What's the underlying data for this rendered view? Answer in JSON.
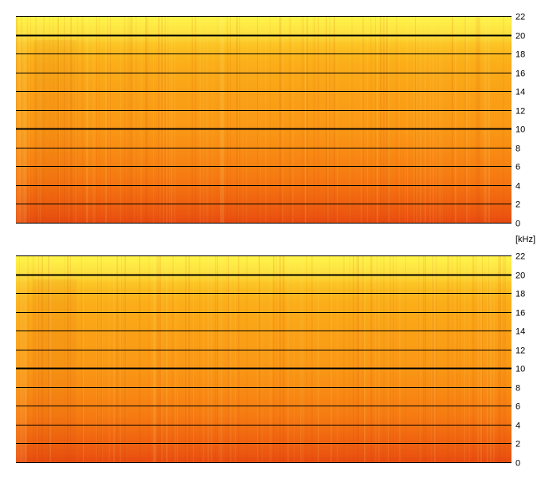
{
  "chart_data": [
    {
      "type": "heatmap",
      "title": "",
      "ylabel": "[kHz]",
      "ylim": [
        0,
        22
      ],
      "yticks": [
        0,
        2,
        4,
        6,
        8,
        10,
        12,
        14,
        16,
        18,
        20,
        22
      ],
      "ytick_labels": [
        "0",
        "2",
        "4",
        "6",
        "8",
        "10",
        "12",
        "14",
        "16",
        "18",
        "20",
        "22"
      ],
      "emphasized_gridlines": [
        10,
        20
      ],
      "grid": true,
      "colormap": [
        "#e0360f",
        "#f26a10",
        "#f98d13",
        "#fbb61a",
        "#fde340",
        "#fff84a"
      ],
      "intensity_profile": {
        "freq_khz": [
          0,
          1,
          3,
          5,
          8,
          10,
          14,
          17,
          19,
          20.5,
          21.5,
          22
        ],
        "level": [
          0.08,
          0.13,
          0.2,
          0.3,
          0.4,
          0.45,
          0.5,
          0.56,
          0.66,
          0.82,
          0.92,
          0.95
        ]
      }
    },
    {
      "type": "heatmap",
      "title": "",
      "ylabel": "",
      "ylim": [
        0,
        22
      ],
      "yticks": [
        0,
        2,
        4,
        6,
        8,
        10,
        12,
        14,
        16,
        18,
        20,
        22
      ],
      "ytick_labels": [
        "0",
        "2",
        "4",
        "6",
        "8",
        "10",
        "12",
        "14",
        "16",
        "18",
        "20",
        "22"
      ],
      "emphasized_gridlines": [
        10,
        20
      ],
      "grid": true,
      "colormap": [
        "#e0360f",
        "#f26a10",
        "#f98d13",
        "#fbb61a",
        "#fde340",
        "#fff84a"
      ],
      "intensity_profile": {
        "freq_khz": [
          0,
          1,
          3,
          5,
          8,
          10,
          14,
          17,
          19,
          20.5,
          21.5,
          22
        ],
        "level": [
          0.08,
          0.13,
          0.2,
          0.3,
          0.4,
          0.45,
          0.5,
          0.56,
          0.66,
          0.82,
          0.92,
          0.95
        ]
      }
    }
  ]
}
